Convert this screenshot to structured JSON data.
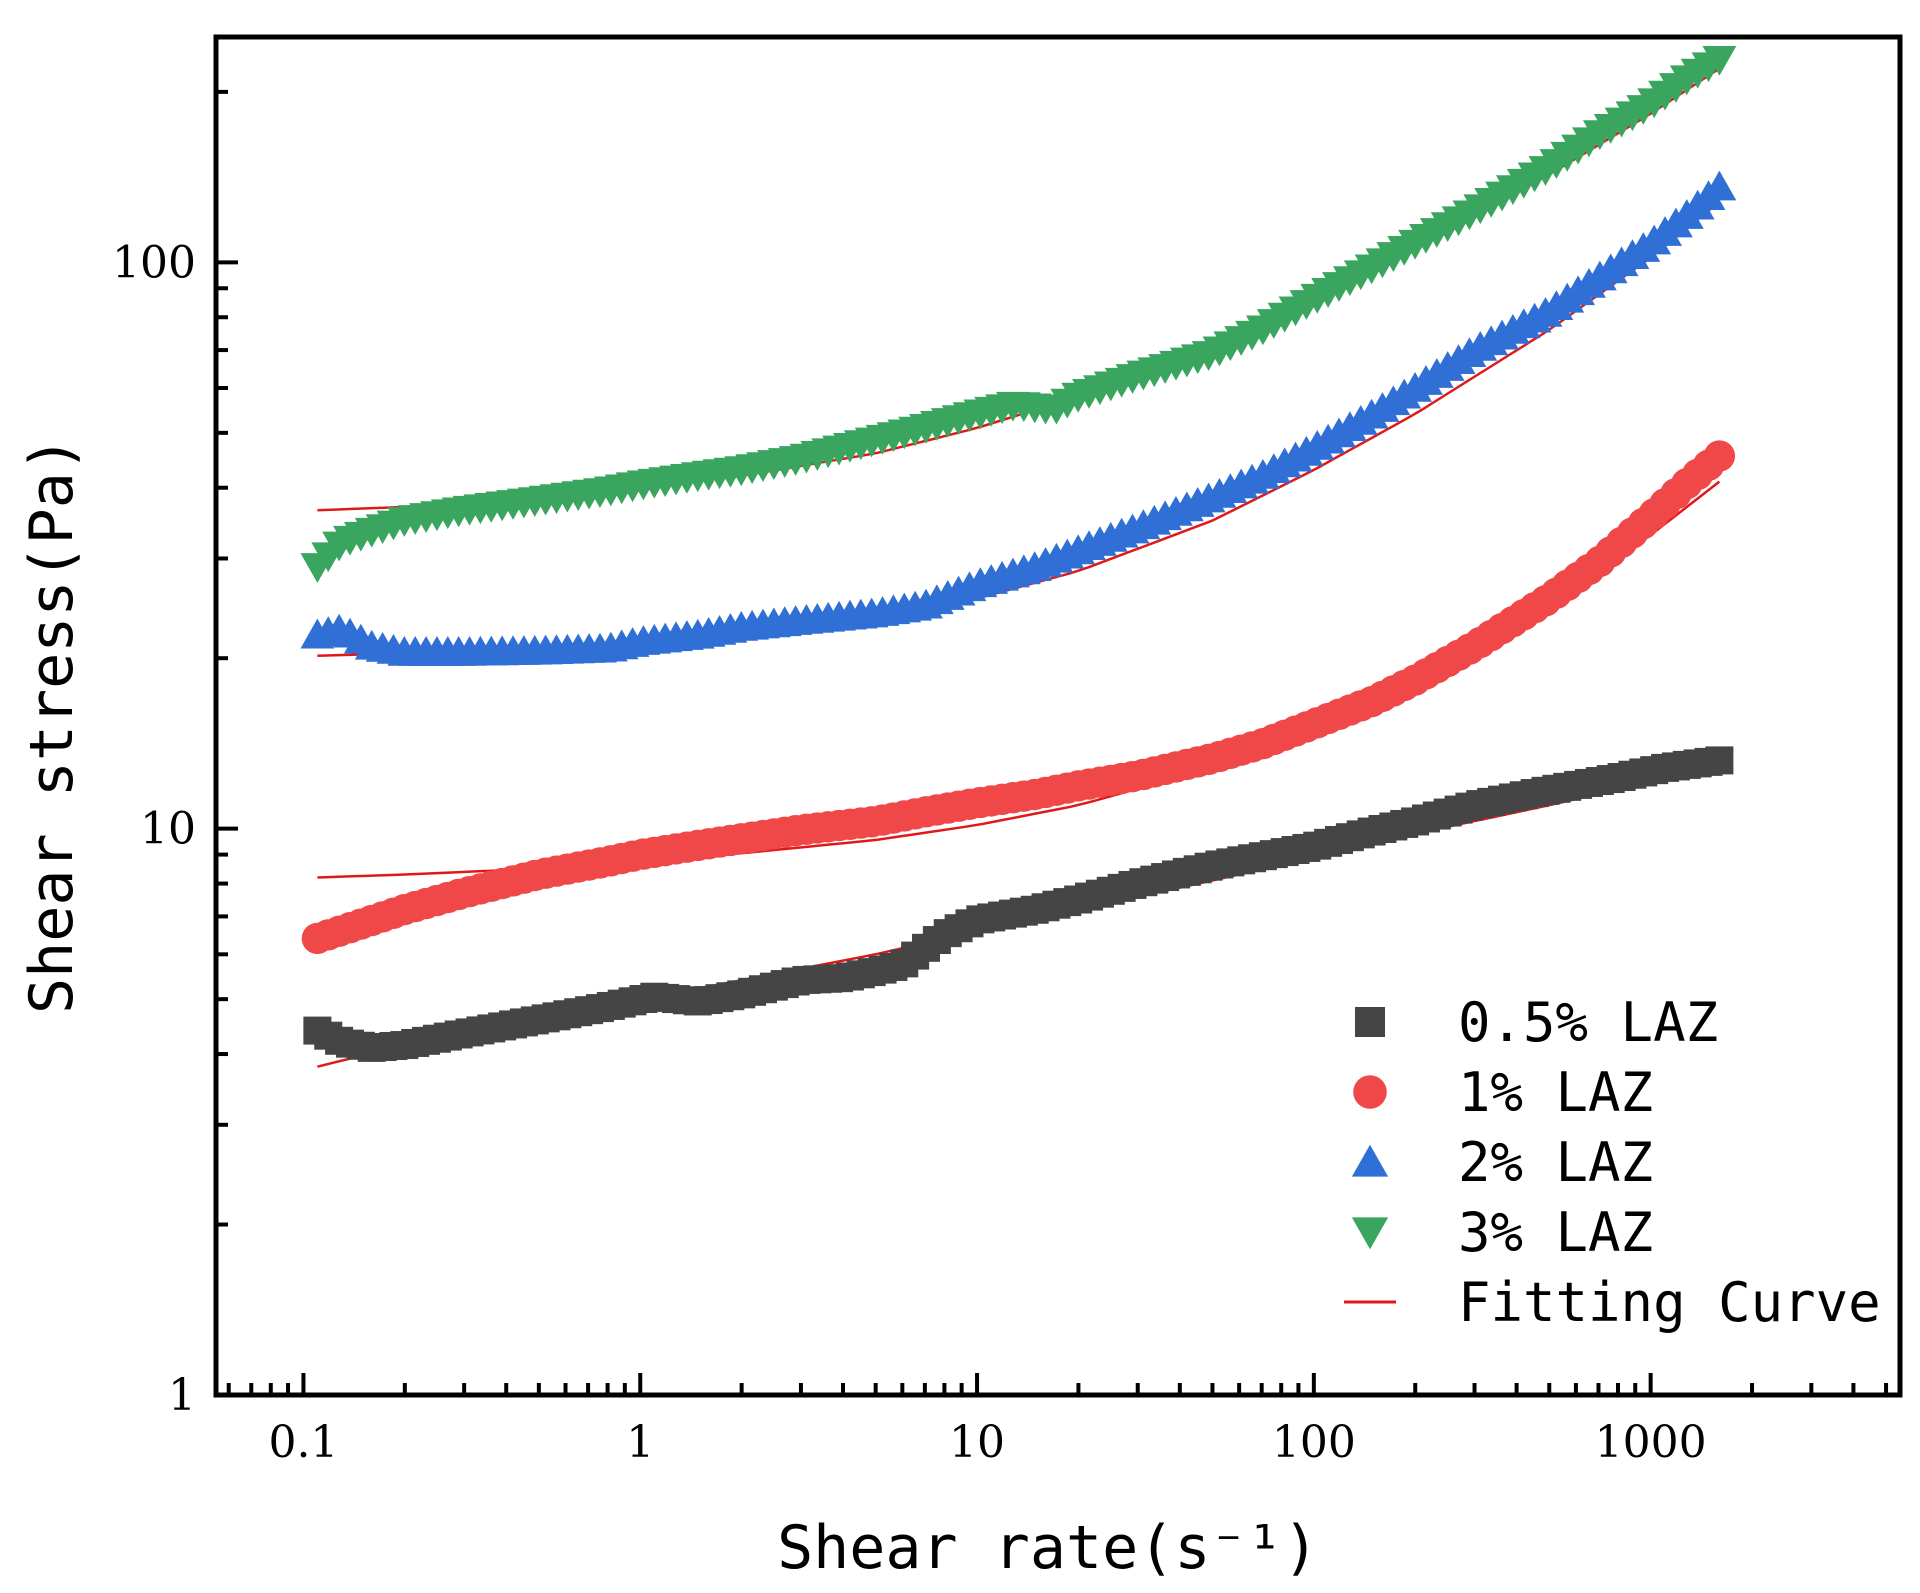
{
  "chart_data": {
    "type": "scatter",
    "title": "",
    "xlabel": "Shear rate(s⁻¹)",
    "ylabel": "Shear stress(Pa)",
    "xscale": "log",
    "yscale": "log",
    "xlim": [
      0.055,
      5500
    ],
    "ylim": [
      1,
      250
    ],
    "xticks": [
      {
        "value": 0.1,
        "label": "0.1"
      },
      {
        "value": 1,
        "label": "1"
      },
      {
        "value": 10,
        "label": "10"
      },
      {
        "value": 100,
        "label": "100"
      },
      {
        "value": 1000,
        "label": "1000"
      }
    ],
    "yticks": [
      {
        "value": 1,
        "label": "1"
      },
      {
        "value": 10,
        "label": "10"
      },
      {
        "value": 100,
        "label": "100"
      }
    ],
    "grid": false,
    "legend_position": "bottom-right",
    "series": [
      {
        "name": "0.5% LAZ",
        "marker": "square",
        "color": "#454545",
        "x": [
          0.11,
          0.13,
          0.16,
          0.2,
          0.3,
          0.5,
          0.8,
          1.1,
          1.5,
          2,
          3,
          4,
          5,
          6,
          8,
          10,
          15,
          20,
          30,
          50,
          100,
          150,
          200,
          300,
          500,
          800,
          1100,
          1600
        ],
        "y": [
          4.4,
          4.2,
          4.1,
          4.15,
          4.35,
          4.6,
          4.85,
          5.05,
          4.95,
          5.1,
          5.4,
          5.45,
          5.6,
          5.75,
          6.5,
          6.9,
          7.2,
          7.5,
          8.0,
          8.6,
          9.3,
          9.9,
          10.3,
          11.0,
          11.7,
          12.3,
          12.8,
          13.2
        ]
      },
      {
        "name": "1% LAZ",
        "marker": "circle",
        "color": "#f04848",
        "x": [
          0.11,
          0.15,
          0.2,
          0.3,
          0.5,
          0.8,
          1,
          1.5,
          2,
          3,
          5,
          7,
          10,
          15,
          20,
          30,
          50,
          70,
          100,
          150,
          200,
          300,
          500,
          700,
          1000,
          1300,
          1600
        ],
        "y": [
          6.4,
          6.8,
          7.2,
          7.7,
          8.3,
          8.75,
          9.0,
          9.35,
          9.6,
          9.95,
          10.3,
          10.7,
          11.1,
          11.5,
          11.9,
          12.4,
          13.3,
          14.1,
          15.3,
          16.8,
          18.3,
          21.0,
          25.5,
          29.5,
          35.5,
          41.0,
          45.5
        ]
      },
      {
        "name": "2% LAZ",
        "marker": "triangle-up",
        "color": "#2f6fd6",
        "x": [
          0.11,
          0.13,
          0.16,
          0.2,
          0.3,
          0.5,
          0.8,
          1,
          1.5,
          2,
          3,
          5,
          7,
          10,
          15,
          20,
          30,
          50,
          70,
          100,
          150,
          200,
          300,
          500,
          700,
          1000,
          1300,
          1600
        ],
        "y": [
          22.0,
          22.5,
          21.0,
          20.5,
          20.5,
          20.6,
          20.8,
          21.4,
          22.0,
          22.7,
          23.3,
          24.0,
          24.8,
          27.0,
          29.0,
          31.0,
          34.0,
          38.5,
          42.0,
          47.0,
          54.0,
          60.0,
          70.0,
          82.0,
          94.0,
          108.0,
          122.0,
          136.0
        ]
      },
      {
        "name": "3% LAZ",
        "marker": "triangle-down",
        "color": "#3aa55e",
        "x": [
          0.11,
          0.13,
          0.16,
          0.2,
          0.3,
          0.5,
          0.8,
          1,
          1.5,
          2,
          3,
          5,
          7,
          10,
          13,
          17,
          20,
          30,
          50,
          70,
          100,
          150,
          200,
          300,
          500,
          700,
          1000,
          1300,
          1600
        ],
        "y": [
          29.0,
          32.0,
          33.5,
          35.0,
          36.5,
          38.0,
          39.5,
          40.5,
          42.0,
          43.0,
          45.0,
          48.5,
          51.0,
          54.0,
          56.0,
          55.0,
          58.0,
          63.0,
          69.0,
          76.0,
          86.0,
          98.0,
          108.0,
          123.0,
          147.0,
          168.0,
          190.0,
          212.0,
          228.0
        ]
      }
    ],
    "fit_curves": {
      "name": "Fitting Curve",
      "color": "#e01818",
      "x": [
        0.11,
        0.2,
        0.5,
        1,
        2,
        5,
        10,
        20,
        50,
        100,
        200,
        500,
        1000,
        1600
      ],
      "curves": [
        {
          "series": "0.5% LAZ",
          "y": [
            3.8,
            4.15,
            4.65,
            5.0,
            5.4,
            6.0,
            6.6,
            7.2,
            8.1,
            8.9,
            9.8,
            11.0,
            12.1,
            12.9
          ]
        },
        {
          "series": "1% LAZ",
          "y": [
            8.2,
            8.3,
            8.5,
            8.75,
            9.05,
            9.55,
            10.15,
            11.0,
            12.8,
            14.8,
            17.8,
            24.5,
            33.0,
            41.0
          ]
        },
        {
          "series": "2% LAZ",
          "y": [
            20.2,
            20.4,
            20.8,
            21.3,
            22.0,
            23.5,
            25.5,
            28.5,
            35.0,
            43.0,
            54.0,
            76.0,
            102.0,
            128.0
          ]
        },
        {
          "series": "3% LAZ",
          "y": [
            36.5,
            37.0,
            38.5,
            40.0,
            42.0,
            46.0,
            51.0,
            58.0,
            71.0,
            86.0,
            106.0,
            143.0,
            183.0,
            220.0
          ]
        }
      ]
    }
  }
}
